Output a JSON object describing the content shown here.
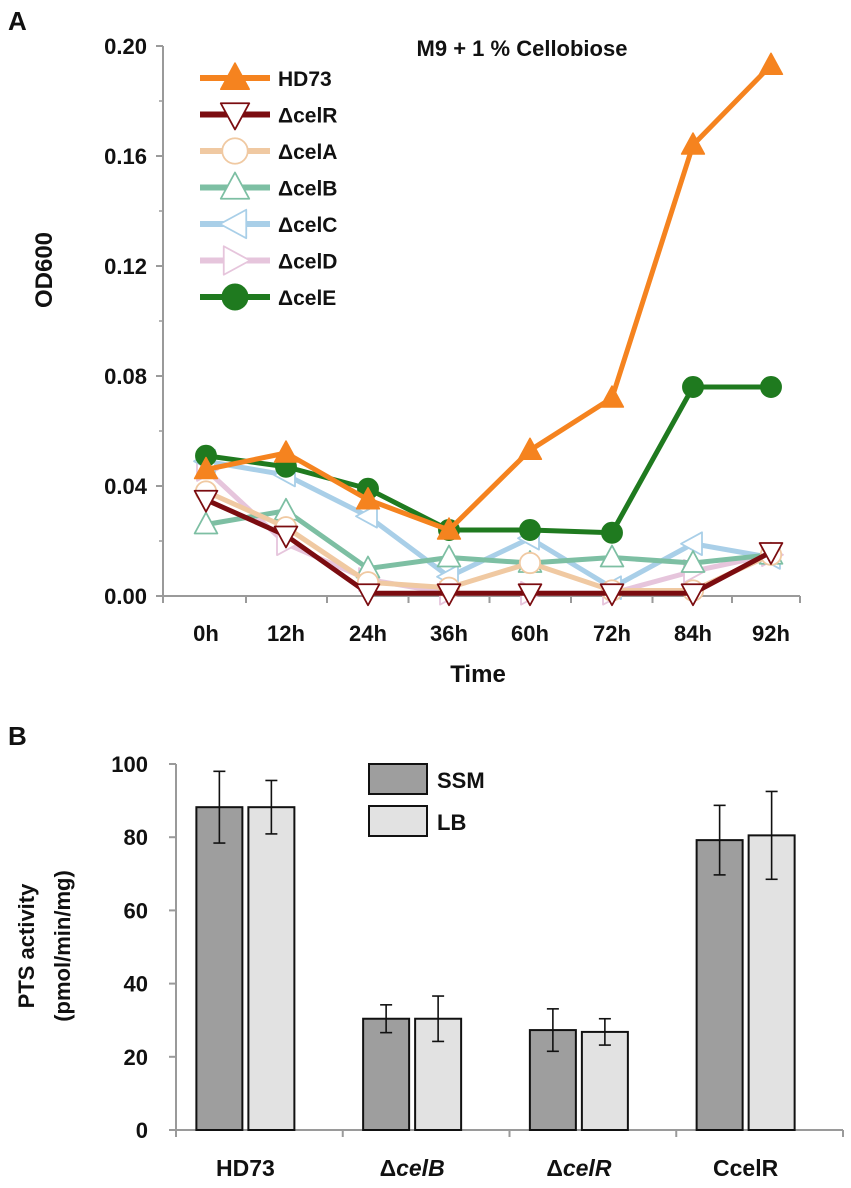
{
  "chart_data": [
    {
      "type": "line",
      "panel_label": "A",
      "title": "M9 + 1 % Cellobiose",
      "xlabel": "Time",
      "ylabel": "OD600",
      "categories": [
        "0h",
        "12h",
        "24h",
        "36h",
        "60h",
        "72h",
        "84h",
        "92h"
      ],
      "ylim": [
        0,
        0.2
      ],
      "yticks": [
        "0.00",
        "0.04",
        "0.08",
        "0.12",
        "0.16",
        "0.20"
      ],
      "grid": false,
      "legend": "top-left",
      "series": [
        {
          "name": "HD73",
          "color": "#f5831f",
          "marker": "triangle-up-filled",
          "values": [
            0.046,
            0.052,
            0.035,
            0.024,
            0.053,
            0.072,
            0.164,
            0.193
          ]
        },
        {
          "name": "ΔcelR",
          "color": "#7b0c10",
          "marker": "triangle-down-open",
          "values": [
            0.035,
            0.022,
            0.001,
            0.001,
            0.001,
            0.001,
            0.001,
            0.016
          ]
        },
        {
          "name": "ΔcelA",
          "color": "#f0c9a2",
          "marker": "circle-open",
          "values": [
            0.038,
            0.025,
            0.005,
            0.003,
            0.012,
            0.002,
            0.002,
            0.015
          ]
        },
        {
          "name": "ΔcelB",
          "color": "#7dbfa3",
          "marker": "triangle-up-open",
          "values": [
            0.026,
            0.031,
            0.01,
            0.014,
            0.012,
            0.014,
            0.012,
            0.015
          ]
        },
        {
          "name": "ΔcelC",
          "color": "#a9cfe8",
          "marker": "triangle-left-open",
          "values": [
            0.049,
            0.044,
            0.029,
            0.007,
            0.021,
            0.003,
            0.019,
            0.014
          ]
        },
        {
          "name": "ΔcelD",
          "color": "#e6c5dc",
          "marker": "triangle-right-open",
          "values": [
            0.046,
            0.019,
            0.006,
            0.001,
            0.001,
            0.001,
            0.009,
            0.015
          ]
        },
        {
          "name": "ΔcelE",
          "color": "#1f7a1f",
          "marker": "circle-filled",
          "values": [
            0.051,
            0.047,
            0.039,
            0.024,
            0.024,
            0.023,
            0.076,
            0.076
          ]
        }
      ]
    },
    {
      "type": "bar",
      "panel_label": "B",
      "title": "",
      "xlabel": "",
      "ylabel_line1": "PTS activity",
      "ylabel_line2": "(pmol/min/mg)",
      "categories": [
        "HD73",
        "ΔcelB",
        "ΔcelR",
        "CcelR"
      ],
      "category_italic_parts": [
        {
          "prefix": "",
          "italic": "",
          "plain": "HD73"
        },
        {
          "prefix": "Δ",
          "italic": "celB",
          "plain": ""
        },
        {
          "prefix": "Δ",
          "italic": "celR",
          "plain": ""
        },
        {
          "prefix": "",
          "italic": "",
          "plain": "CcelR"
        }
      ],
      "ylim": [
        0,
        100
      ],
      "yticks": [
        "0",
        "20",
        "40",
        "60",
        "80",
        "100"
      ],
      "grid": false,
      "legend": "top-center",
      "series": [
        {
          "name": "SSM",
          "color": "#9e9e9e",
          "values": [
            88.2,
            30.4,
            27.3,
            79.2
          ],
          "errors": [
            9.8,
            3.8,
            5.8,
            9.5
          ]
        },
        {
          "name": "LB",
          "color": "#e2e2e2",
          "values": [
            88.2,
            30.4,
            26.8,
            80.5
          ],
          "errors": [
            7.3,
            6.2,
            3.6,
            12.0
          ]
        }
      ]
    }
  ]
}
